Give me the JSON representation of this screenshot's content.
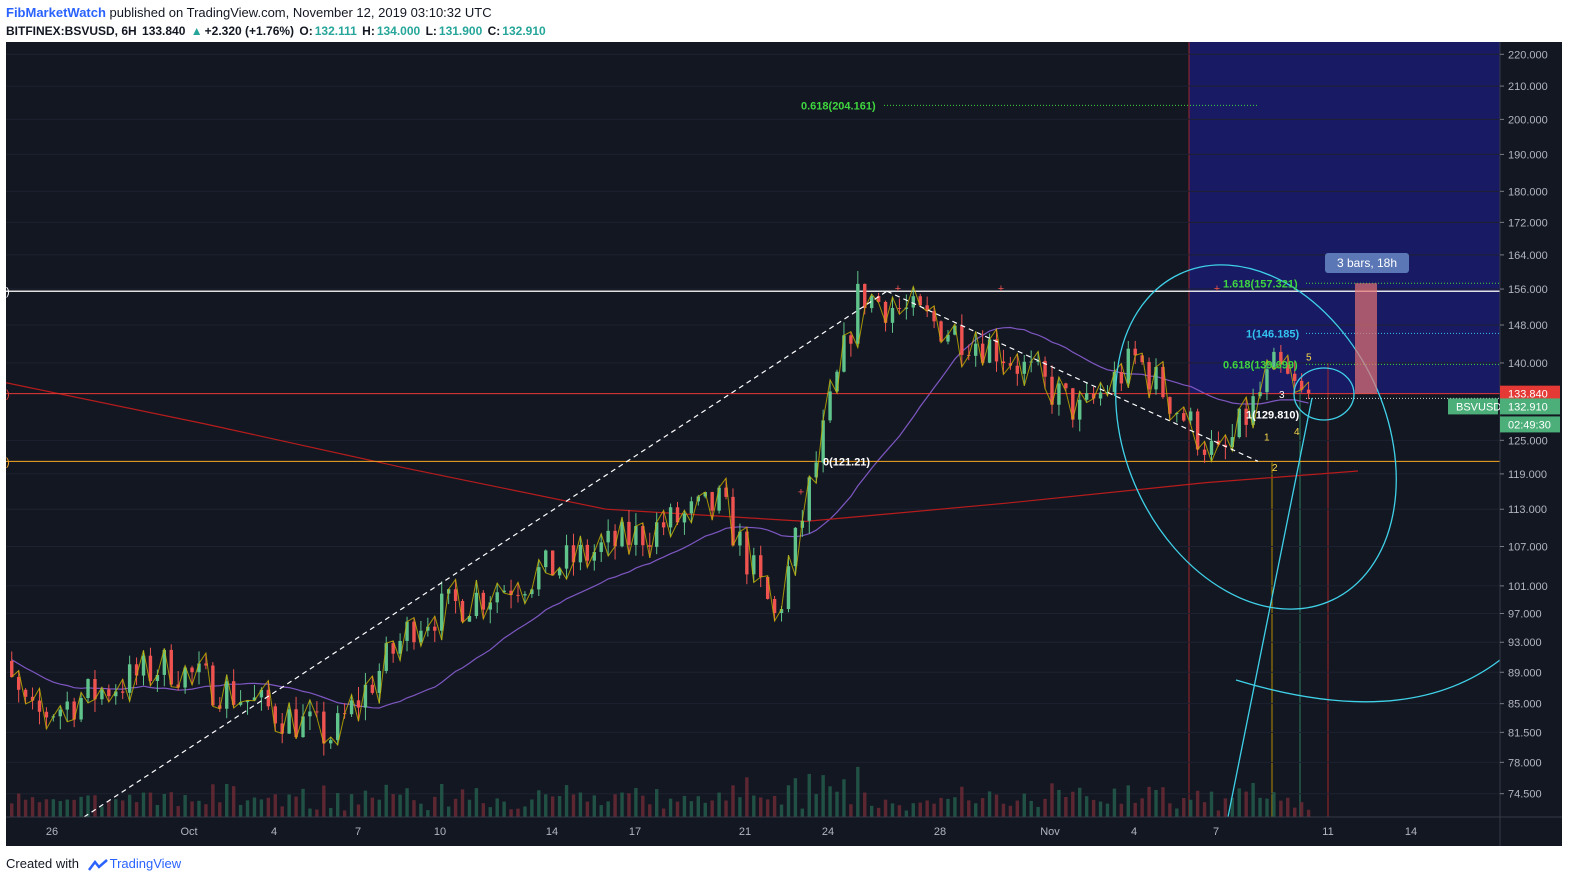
{
  "header": {
    "author": "FibMarketWatch",
    "published": " published on TradingView.com, November 12, 2019 03:10:32 UTC",
    "symbol": "BITFINEX:BSVUSD, 6H",
    "last": "133.840",
    "arrow": "▲",
    "change": "+2.320 (+1.76%)",
    "o_label": "O:",
    "o": "132.111",
    "h_label": "H:",
    "h": "134.000",
    "l_label": "L:",
    "l": "131.900",
    "c_label": "C:",
    "c": "132.910"
  },
  "footer": {
    "created_with": "Created with",
    "brand": "TradingView"
  },
  "colors": {
    "background": "#131722",
    "up": "#5fc38b",
    "down": "#ef5350",
    "fib_green": "#3fd63f",
    "fib_cyan": "#33c3f0",
    "zone": "#1a1b6e",
    "circle": "#3fd1e8",
    "zigzag": "#c9b400"
  },
  "chart_data": {
    "type": "candlestick",
    "y_axis_scale": "log",
    "ylim": [
      72.0,
      224.0
    ],
    "y_ticks": [
      "220.000",
      "210.000",
      "200.000",
      "190.000",
      "180.000",
      "172.000",
      "164.000",
      "156.000",
      "148.000",
      "140.000",
      "133.840",
      "132.910",
      "125.000",
      "119.000",
      "113.000",
      "107.000",
      "101.000",
      "97.000",
      "93.000",
      "89.000",
      "85.000",
      "81.500",
      "78.000",
      "74.500"
    ],
    "x_ticks": [
      "26",
      "Oct",
      "4",
      "7",
      "10",
      "14",
      "17",
      "21",
      "24",
      "28",
      "Nov",
      "4",
      "7",
      "11",
      "14"
    ],
    "price_labels": {
      "last": "133.840",
      "symbol": "BSVUSD",
      "close": "132.910",
      "countdown": "02:49:30"
    },
    "fib_levels": [
      {
        "label": "0.618(204.161)",
        "price": 204.161
      },
      {
        "label": "1.618(157.321)",
        "price": 157.321
      },
      {
        "label": "1(146.185)",
        "price": 146.185
      },
      {
        "label": "0.618(139.699)",
        "price": 139.699
      },
      {
        "label": "1(129.810)",
        "price": 129.81
      },
      {
        "label": "0(121.21)",
        "price": 121.21
      }
    ],
    "horizontal_lines": [
      155.5,
      133.84,
      121.21
    ],
    "measure_label": "3 bars, 18h",
    "wave_labels": [
      "1",
      "2",
      "3",
      "4",
      "5"
    ],
    "key_points": [
      {
        "date": "Sep 26",
        "price": 83.0
      },
      {
        "date": "Oct 1",
        "price": 90.0
      },
      {
        "date": "Oct 7",
        "price": 81.0
      },
      {
        "date": "Oct 10",
        "price": 96.0
      },
      {
        "date": "Oct 21",
        "price": 114.0
      },
      {
        "date": "Oct 23",
        "price": 96.0
      },
      {
        "date": "Oct 26",
        "price": 155.0
      },
      {
        "date": "Oct 31",
        "price": 143.0
      },
      {
        "date": "Nov 3",
        "price": 130.0
      },
      {
        "date": "Nov 5",
        "price": 141.0
      },
      {
        "date": "Nov 8",
        "price": 121.2
      },
      {
        "date": "Nov 10",
        "price": 139.0
      },
      {
        "date": "Nov 11",
        "price": 132.9
      }
    ]
  }
}
